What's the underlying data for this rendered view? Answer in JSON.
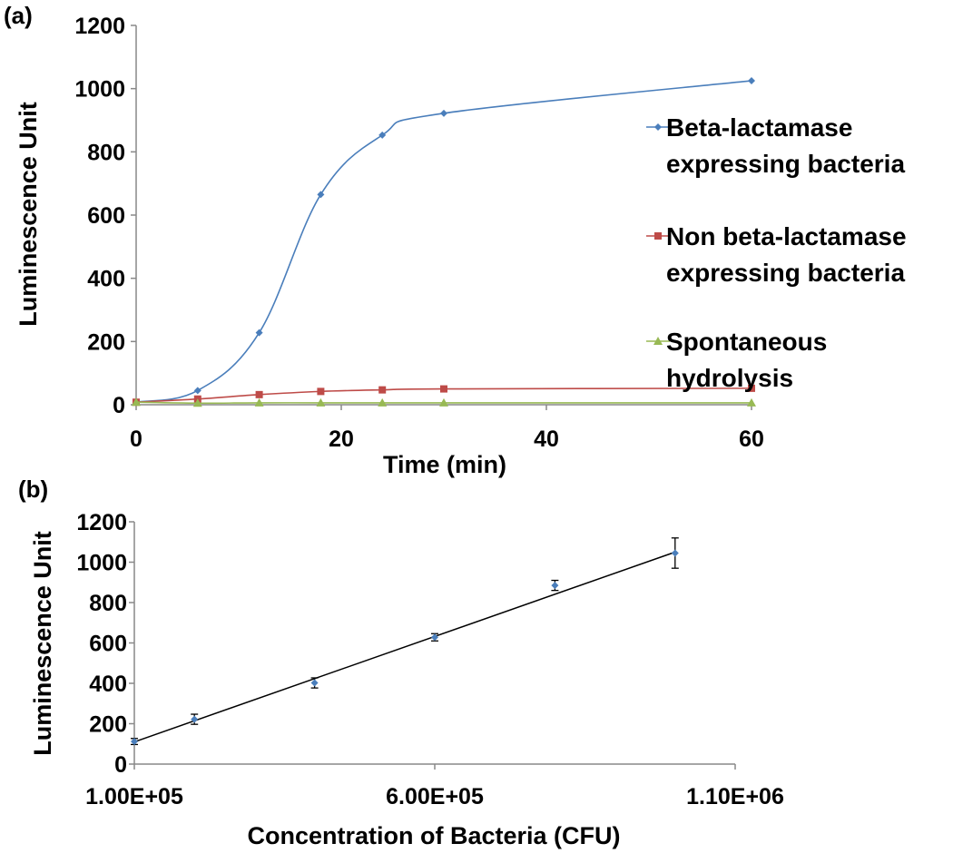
{
  "chart_data": [
    {
      "panel_label": "(a)",
      "type": "line",
      "xlabel": "Time (min)",
      "ylabel": "Luminescence Unit",
      "xlim": [
        0,
        60
      ],
      "ylim": [
        0,
        1200
      ],
      "xticks": [
        0,
        20,
        40,
        60
      ],
      "yticks": [
        0,
        200,
        400,
        600,
        800,
        1000,
        1200
      ],
      "legend_position": "right",
      "series": [
        {
          "name": "Beta-lactamase expressing bacteria",
          "legend_lines": [
            "Beta-lactamase",
            "expressing bacteria"
          ],
          "color": "#4a7ebb",
          "marker": "diamond",
          "x": [
            0,
            6,
            12,
            18,
            24,
            30,
            60
          ],
          "y": [
            8,
            45,
            228,
            665,
            853,
            922,
            1025
          ]
        },
        {
          "name": "Non beta-lactamase expressing bacteria",
          "legend_lines": [
            "Non beta-lactamase",
            "expressing bacteria"
          ],
          "color": "#be4b48",
          "marker": "square",
          "x": [
            0,
            6,
            12,
            18,
            24,
            30,
            60
          ],
          "y": [
            8,
            18,
            32,
            42,
            47,
            50,
            52
          ]
        },
        {
          "name": "Spontaneous hydrolysis",
          "legend_lines": [
            "Spontaneous",
            "hydrolysis"
          ],
          "color": "#98b954",
          "marker": "triangle",
          "x": [
            0,
            6,
            12,
            18,
            24,
            30,
            60
          ],
          "y": [
            8,
            5,
            6,
            6,
            6,
            6,
            6
          ]
        }
      ]
    },
    {
      "panel_label": "(b)",
      "type": "scatter",
      "xlabel": "Concentration of Bacteria (CFU)",
      "ylabel": "Luminescence Unit",
      "xlim": [
        100000,
        1100000
      ],
      "ylim": [
        0,
        1200
      ],
      "xticks": [
        100000,
        600000,
        1100000
      ],
      "xtick_labels": [
        "1.00E+05",
        "6.00E+05",
        "1.10E+06"
      ],
      "yticks": [
        0,
        200,
        400,
        600,
        800,
        1000,
        1200
      ],
      "marker_color": "#4a7ebb",
      "trendline": "linear",
      "points": [
        {
          "x": 100000,
          "y": 112,
          "err": 15
        },
        {
          "x": 200000,
          "y": 222,
          "err": 25
        },
        {
          "x": 400000,
          "y": 402,
          "err": 25
        },
        {
          "x": 600000,
          "y": 628,
          "err": 18
        },
        {
          "x": 800000,
          "y": 885,
          "err": 25
        },
        {
          "x": 1000000,
          "y": 1045,
          "err": 75
        }
      ],
      "trend_y": [
        110,
        1050
      ]
    }
  ]
}
